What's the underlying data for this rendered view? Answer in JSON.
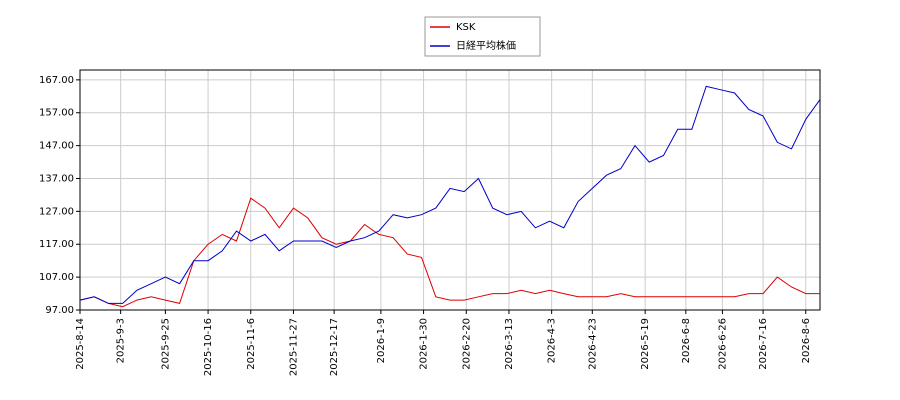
{
  "chart_data": {
    "type": "line",
    "x": [
      "2025-8-14",
      "2025-8-21",
      "2025-8-28",
      "2025-9-4",
      "2025-9-11",
      "2025-9-18",
      "2025-9-25",
      "2025-10-2",
      "2025-10-9",
      "2025-10-16",
      "2025-10-23",
      "2025-10-30",
      "2025-11-6",
      "2025-11-13",
      "2025-11-20",
      "2025-11-27",
      "2025-12-4",
      "2025-12-11",
      "2025-12-18",
      "2025-12-25",
      "2026-1-1",
      "2026-1-8",
      "2026-1-15",
      "2026-1-22",
      "2026-1-29",
      "2026-2-5",
      "2026-2-12",
      "2026-2-19",
      "2026-2-26",
      "2026-3-5",
      "2026-3-12",
      "2026-3-19",
      "2026-3-26",
      "2026-4-2",
      "2026-4-9",
      "2026-4-16",
      "2026-4-23",
      "2026-4-30",
      "2026-5-7",
      "2026-5-14",
      "2026-5-21",
      "2026-5-28",
      "2026-6-4",
      "2026-6-11",
      "2026-6-18",
      "2026-6-25",
      "2026-7-2",
      "2026-7-9",
      "2026-7-16",
      "2026-7-23",
      "2026-7-30",
      "2026-8-6",
      "2026-8-13"
    ],
    "series": [
      {
        "name": "KSK",
        "color": "#dd0000",
        "values": [
          100,
          101,
          99,
          98,
          100,
          101,
          100,
          99,
          112,
          117,
          120,
          118,
          131,
          128,
          122,
          128,
          125,
          119,
          117,
          118,
          123,
          120,
          119,
          114,
          113,
          101,
          100,
          100,
          101,
          102,
          102,
          103,
          102,
          103,
          102,
          101,
          101,
          101,
          102,
          101,
          101,
          101,
          101,
          101,
          101,
          101,
          101,
          102,
          102,
          107,
          104,
          102,
          102
        ]
      },
      {
        "name": "日経平均株価",
        "color": "#0000cc",
        "values": [
          100,
          101,
          99,
          99,
          103,
          105,
          107,
          105,
          112,
          112,
          115,
          121,
          118,
          120,
          115,
          118,
          118,
          118,
          116,
          118,
          119,
          121,
          126,
          125,
          126,
          128,
          134,
          133,
          137,
          128,
          126,
          127,
          122,
          124,
          122,
          130,
          134,
          138,
          140,
          147,
          142,
          144,
          152,
          152,
          165,
          164,
          163,
          158,
          156,
          148,
          146,
          155,
          161
        ]
      }
    ],
    "xlim": [
      "2025-8-14",
      "2026-8-13"
    ],
    "xticks": [
      "2025-8-14",
      "2025-9-3",
      "2025-9-25",
      "2025-10-16",
      "2025-11-6",
      "2025-11-27",
      "2025-12-17",
      "2026-1-9",
      "2026-1-30",
      "2026-2-20",
      "2026-3-13",
      "2026-4-3",
      "2026-4-23",
      "2026-5-19",
      "2026-6-8",
      "2026-6-26",
      "2026-7-16",
      "2026-8-6"
    ],
    "ylim": [
      97,
      170
    ],
    "yticks": [
      {
        "value": 97,
        "label": "97.00"
      },
      {
        "value": 107,
        "label": "107.00"
      },
      {
        "value": 117,
        "label": "117.00"
      },
      {
        "value": 127,
        "label": "127.00"
      },
      {
        "value": 137,
        "label": "137.00"
      },
      {
        "value": 147,
        "label": "147.00"
      },
      {
        "value": 157,
        "label": "157.00"
      },
      {
        "value": 167,
        "label": "167.00"
      }
    ],
    "grid": true
  }
}
